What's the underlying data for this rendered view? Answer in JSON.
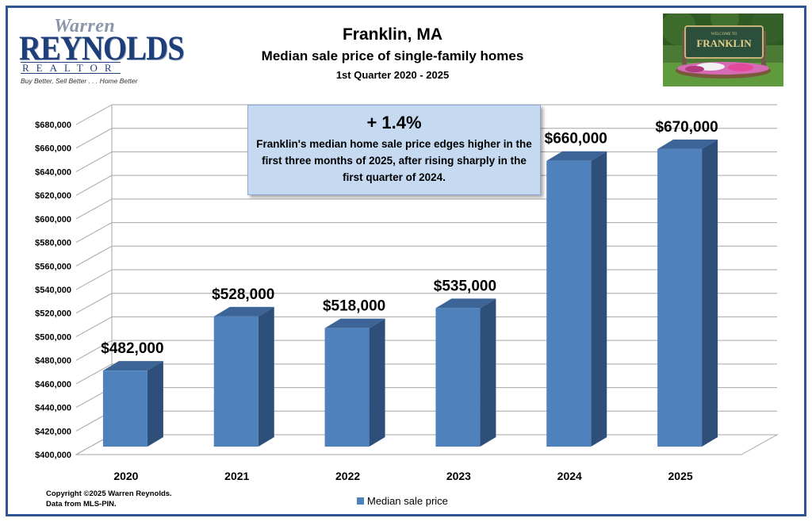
{
  "logo": {
    "name_script": "Warren",
    "name_main": "REYNOLDS",
    "name_sub": "REALTOR",
    "tagline": "Buy Better, Sell Better . . . Home Better"
  },
  "header": {
    "title": "Franklin, MA",
    "subtitle": "Median sale price of single-family homes",
    "period": "1st Quarter  2020 - 2025"
  },
  "photo": {
    "sign_text": "FRANKLIN",
    "sign_top": "WELCOME TO"
  },
  "callout": {
    "change": "+ 1.4%",
    "text": "Franklin's median home sale price edges higher in the first three months of 2025, after rising sharply in the first quarter of 2024."
  },
  "footer": {
    "copyright": "Copyright ©2025 Warren Reynolds.",
    "source": "Data from MLS-PIN."
  },
  "colors": {
    "bar_front": "#4f81bd",
    "bar_side": "#2f4f7b",
    "bar_top": "#3c6497",
    "border": "#2f5597",
    "callout_bg": "#c5d9f1"
  },
  "chart_data": {
    "type": "bar",
    "style": "3d-column",
    "categories": [
      "2020",
      "2021",
      "2022",
      "2023",
      "2024",
      "2025"
    ],
    "series": [
      {
        "name": "Median sale price",
        "values": [
          482000,
          528000,
          518000,
          535000,
          660000,
          670000
        ]
      }
    ],
    "data_labels": [
      "$482,000",
      "$528,000",
      "$518,000",
      "$535,000",
      "$660,000",
      "$670,000"
    ],
    "ylim": [
      400000,
      680000
    ],
    "ytick_step": 20000,
    "ytick_labels": [
      "$400,000",
      "$420,000",
      "$440,000",
      "$460,000",
      "$480,000",
      "$500,000",
      "$520,000",
      "$540,000",
      "$560,000",
      "$580,000",
      "$600,000",
      "$620,000",
      "$640,000",
      "$660,000",
      "$680,000"
    ],
    "grid": true,
    "legend_position": "bottom"
  }
}
